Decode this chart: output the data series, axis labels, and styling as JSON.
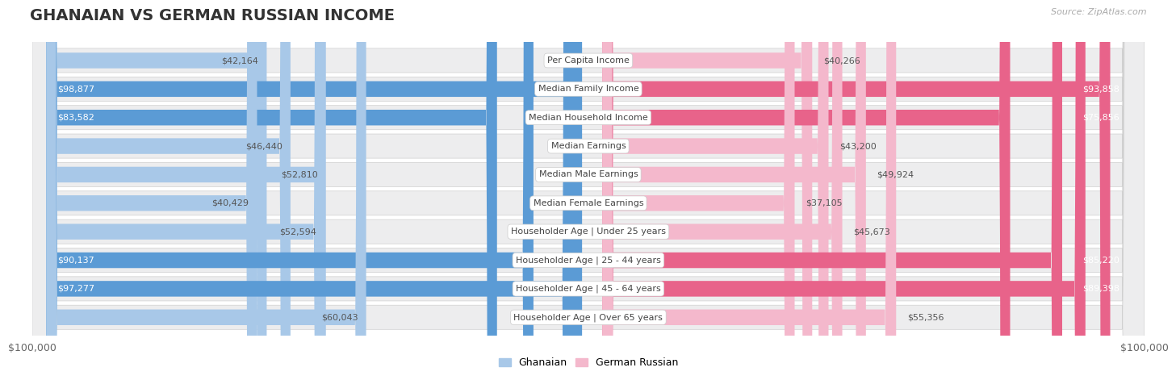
{
  "title": "GHANAIAN VS GERMAN RUSSIAN INCOME",
  "source": "Source: ZipAtlas.com",
  "categories": [
    "Per Capita Income",
    "Median Family Income",
    "Median Household Income",
    "Median Earnings",
    "Median Male Earnings",
    "Median Female Earnings",
    "Householder Age | Under 25 years",
    "Householder Age | 25 - 44 years",
    "Householder Age | 45 - 64 years",
    "Householder Age | Over 65 years"
  ],
  "ghanaian_values": [
    42164,
    98877,
    83582,
    46440,
    52810,
    40429,
    52594,
    90137,
    97277,
    60043
  ],
  "german_russian_values": [
    40266,
    93858,
    75856,
    43200,
    49924,
    37105,
    45673,
    85220,
    89398,
    55356
  ],
  "ghanaian_labels": [
    "$42,164",
    "$98,877",
    "$83,582",
    "$46,440",
    "$52,810",
    "$40,429",
    "$52,594",
    "$90,137",
    "$97,277",
    "$60,043"
  ],
  "german_russian_labels": [
    "$40,266",
    "$93,858",
    "$75,856",
    "$43,200",
    "$49,924",
    "$37,105",
    "$45,673",
    "$85,220",
    "$89,398",
    "$55,356"
  ],
  "max_value": 100000,
  "ghanaian_color_light": "#a8c8e8",
  "ghanaian_color_dark": "#5b9bd5",
  "german_russian_color_light": "#f4b8cc",
  "german_russian_color_dark": "#e8638a",
  "label_color_white": "#ffffff",
  "label_color_dark": "#555555",
  "background_color": "#ffffff",
  "row_bg": "#ededee",
  "row_border": "#d0d0d0",
  "legend_ghanaian": "Ghanaian",
  "legend_german_russian": "German Russian",
  "xlabel_left": "$100,000",
  "xlabel_right": "$100,000",
  "dark_threshold": 70000,
  "title_fontsize": 14,
  "label_fontsize": 8,
  "cat_fontsize": 8
}
